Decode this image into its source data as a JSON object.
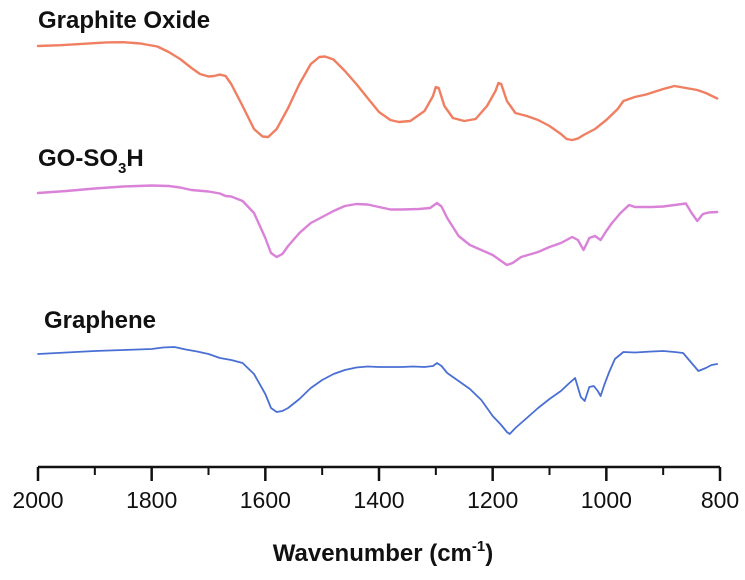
{
  "chart_data": {
    "type": "line",
    "title": "",
    "xlabel": "Wavenumber (cm-1)",
    "xlabel_parts": {
      "main": "Wavenumber (cm",
      "sup": "-1",
      "close": ")"
    },
    "ylabel": "",
    "xlim": [
      2000,
      800
    ],
    "x_reversed": true,
    "y_axis_shown": false,
    "grid": false,
    "legend": "inline labels above each curve",
    "ticks": [
      "2000",
      "1800",
      "1600",
      "1400",
      "1200",
      "1000",
      "800"
    ],
    "tick_values": [
      2000,
      1800,
      1600,
      1400,
      1200,
      1000,
      800
    ],
    "y_units": "relative transmittance (arbitrary, curves vertically offset)",
    "series": [
      {
        "name": "Graphite Oxide",
        "label_main": "Graphite Oxide",
        "color": "#f07f62",
        "points": [
          [
            2000,
            0.0
          ],
          [
            1960,
            -0.8
          ],
          [
            1920,
            -2.2
          ],
          [
            1880,
            -3.6
          ],
          [
            1850,
            -3.8
          ],
          [
            1820,
            -2.5
          ],
          [
            1790,
            0.5
          ],
          [
            1770,
            6.0
          ],
          [
            1750,
            13.0
          ],
          [
            1730,
            22.0
          ],
          [
            1715,
            28.0
          ],
          [
            1700,
            30.5
          ],
          [
            1690,
            30.0
          ],
          [
            1680,
            28.6
          ],
          [
            1670,
            30.0
          ],
          [
            1660,
            38.0
          ],
          [
            1640,
            60.0
          ],
          [
            1620,
            83.0
          ],
          [
            1605,
            90.5
          ],
          [
            1595,
            91.0
          ],
          [
            1580,
            83.0
          ],
          [
            1560,
            62.0
          ],
          [
            1540,
            38.0
          ],
          [
            1520,
            18.0
          ],
          [
            1505,
            11.0
          ],
          [
            1495,
            10.5
          ],
          [
            1480,
            13.5
          ],
          [
            1460,
            25.0
          ],
          [
            1440,
            38.0
          ],
          [
            1420,
            52.0
          ],
          [
            1400,
            66.0
          ],
          [
            1380,
            74.0
          ],
          [
            1365,
            76.0
          ],
          [
            1345,
            75.0
          ],
          [
            1320,
            65.0
          ],
          [
            1305,
            50.0
          ],
          [
            1300,
            41.0
          ],
          [
            1295,
            42.0
          ],
          [
            1285,
            60.0
          ],
          [
            1270,
            72.0
          ],
          [
            1250,
            75.0
          ],
          [
            1230,
            73.0
          ],
          [
            1210,
            60.0
          ],
          [
            1195,
            45.0
          ],
          [
            1190,
            37.0
          ],
          [
            1185,
            38.0
          ],
          [
            1175,
            55.0
          ],
          [
            1160,
            67.0
          ],
          [
            1140,
            70.0
          ],
          [
            1120,
            74.0
          ],
          [
            1100,
            80.0
          ],
          [
            1080,
            88.0
          ],
          [
            1070,
            93.0
          ],
          [
            1060,
            94.0
          ],
          [
            1050,
            92.5
          ],
          [
            1040,
            89.0
          ],
          [
            1020,
            83.0
          ],
          [
            1000,
            74.0
          ],
          [
            980,
            63.0
          ],
          [
            970,
            55.0
          ],
          [
            950,
            51.0
          ],
          [
            930,
            48.5
          ],
          [
            900,
            43.0
          ],
          [
            880,
            40.0
          ],
          [
            860,
            42.0
          ],
          [
            840,
            44.0
          ],
          [
            825,
            47.0
          ],
          [
            805,
            52.5
          ]
        ]
      },
      {
        "name": "GO-SO3H",
        "label_main": "GO-SO",
        "label_sub": "3",
        "label_end": "H",
        "color": "#da82d8",
        "points": [
          [
            2000,
            0.0
          ],
          [
            1950,
            -2.0
          ],
          [
            1900,
            -4.5
          ],
          [
            1850,
            -6.5
          ],
          [
            1800,
            -7.5
          ],
          [
            1770,
            -7.0
          ],
          [
            1750,
            -5.5
          ],
          [
            1730,
            -3.0
          ],
          [
            1700,
            -1.5
          ],
          [
            1680,
            0.5
          ],
          [
            1670,
            3.0
          ],
          [
            1660,
            3.5
          ],
          [
            1640,
            8.0
          ],
          [
            1620,
            20.0
          ],
          [
            1600,
            45.0
          ],
          [
            1590,
            60.0
          ],
          [
            1580,
            64.0
          ],
          [
            1570,
            61.0
          ],
          [
            1560,
            53.0
          ],
          [
            1540,
            40.0
          ],
          [
            1520,
            30.0
          ],
          [
            1500,
            24.0
          ],
          [
            1480,
            18.0
          ],
          [
            1460,
            13.0
          ],
          [
            1440,
            11.0
          ],
          [
            1420,
            11.5
          ],
          [
            1400,
            14.0
          ],
          [
            1380,
            16.5
          ],
          [
            1360,
            16.5
          ],
          [
            1330,
            16.0
          ],
          [
            1310,
            15.0
          ],
          [
            1298,
            10.0
          ],
          [
            1290,
            13.5
          ],
          [
            1280,
            25.0
          ],
          [
            1260,
            43.0
          ],
          [
            1240,
            52.0
          ],
          [
            1220,
            57.0
          ],
          [
            1200,
            62.0
          ],
          [
            1185,
            68.0
          ],
          [
            1175,
            72.0
          ],
          [
            1165,
            70.0
          ],
          [
            1150,
            64.0
          ],
          [
            1120,
            59.0
          ],
          [
            1100,
            54.0
          ],
          [
            1080,
            50.0
          ],
          [
            1060,
            44.0
          ],
          [
            1050,
            47.0
          ],
          [
            1040,
            57.0
          ],
          [
            1030,
            45.0
          ],
          [
            1020,
            43.0
          ],
          [
            1010,
            47.0
          ],
          [
            1000,
            38.0
          ],
          [
            990,
            30.0
          ],
          [
            975,
            20.0
          ],
          [
            960,
            12.0
          ],
          [
            950,
            14.0
          ],
          [
            920,
            14.0
          ],
          [
            900,
            13.5
          ],
          [
            880,
            12.0
          ],
          [
            860,
            10.5
          ],
          [
            850,
            20.0
          ],
          [
            840,
            28.0
          ],
          [
            830,
            21.0
          ],
          [
            820,
            19.5
          ],
          [
            805,
            19.0
          ]
        ]
      },
      {
        "name": "Graphene",
        "label_main": "Graphene",
        "color": "#4a6fd4",
        "points": [
          [
            2000,
            0.0
          ],
          [
            1950,
            -1.5
          ],
          [
            1900,
            -3.0
          ],
          [
            1850,
            -4.0
          ],
          [
            1800,
            -5.0
          ],
          [
            1780,
            -6.5
          ],
          [
            1760,
            -7.0
          ],
          [
            1740,
            -4.5
          ],
          [
            1720,
            -2.5
          ],
          [
            1700,
            0.0
          ],
          [
            1680,
            4.0
          ],
          [
            1660,
            6.0
          ],
          [
            1640,
            9.0
          ],
          [
            1620,
            20.0
          ],
          [
            1600,
            40.0
          ],
          [
            1590,
            54.0
          ],
          [
            1580,
            58.0
          ],
          [
            1570,
            57.0
          ],
          [
            1560,
            54.0
          ],
          [
            1540,
            45.0
          ],
          [
            1520,
            34.0
          ],
          [
            1500,
            26.0
          ],
          [
            1480,
            20.0
          ],
          [
            1460,
            16.0
          ],
          [
            1440,
            13.5
          ],
          [
            1420,
            12.5
          ],
          [
            1400,
            13.0
          ],
          [
            1380,
            13.0
          ],
          [
            1360,
            13.0
          ],
          [
            1340,
            12.5
          ],
          [
            1320,
            13.0
          ],
          [
            1305,
            12.0
          ],
          [
            1298,
            9.0
          ],
          [
            1290,
            12.0
          ],
          [
            1280,
            19.0
          ],
          [
            1260,
            27.0
          ],
          [
            1240,
            35.0
          ],
          [
            1220,
            46.0
          ],
          [
            1200,
            62.0
          ],
          [
            1185,
            71.0
          ],
          [
            1175,
            78.0
          ],
          [
            1170,
            80.0
          ],
          [
            1160,
            74.0
          ],
          [
            1140,
            64.0
          ],
          [
            1120,
            54.0
          ],
          [
            1100,
            45.0
          ],
          [
            1080,
            37.0
          ],
          [
            1065,
            29.0
          ],
          [
            1055,
            24.0
          ],
          [
            1045,
            43.0
          ],
          [
            1038,
            47.0
          ],
          [
            1030,
            33.0
          ],
          [
            1022,
            32.0
          ],
          [
            1015,
            37.0
          ],
          [
            1010,
            42.0
          ],
          [
            1003,
            30.0
          ],
          [
            995,
            18.0
          ],
          [
            985,
            5.0
          ],
          [
            970,
            -2.0
          ],
          [
            950,
            -1.5
          ],
          [
            920,
            -2.5
          ],
          [
            900,
            -3.0
          ],
          [
            880,
            -2.0
          ],
          [
            865,
            -1.0
          ],
          [
            850,
            9.0
          ],
          [
            838,
            17.0
          ],
          [
            825,
            14.0
          ],
          [
            815,
            11.0
          ],
          [
            805,
            10.0
          ]
        ]
      }
    ]
  }
}
